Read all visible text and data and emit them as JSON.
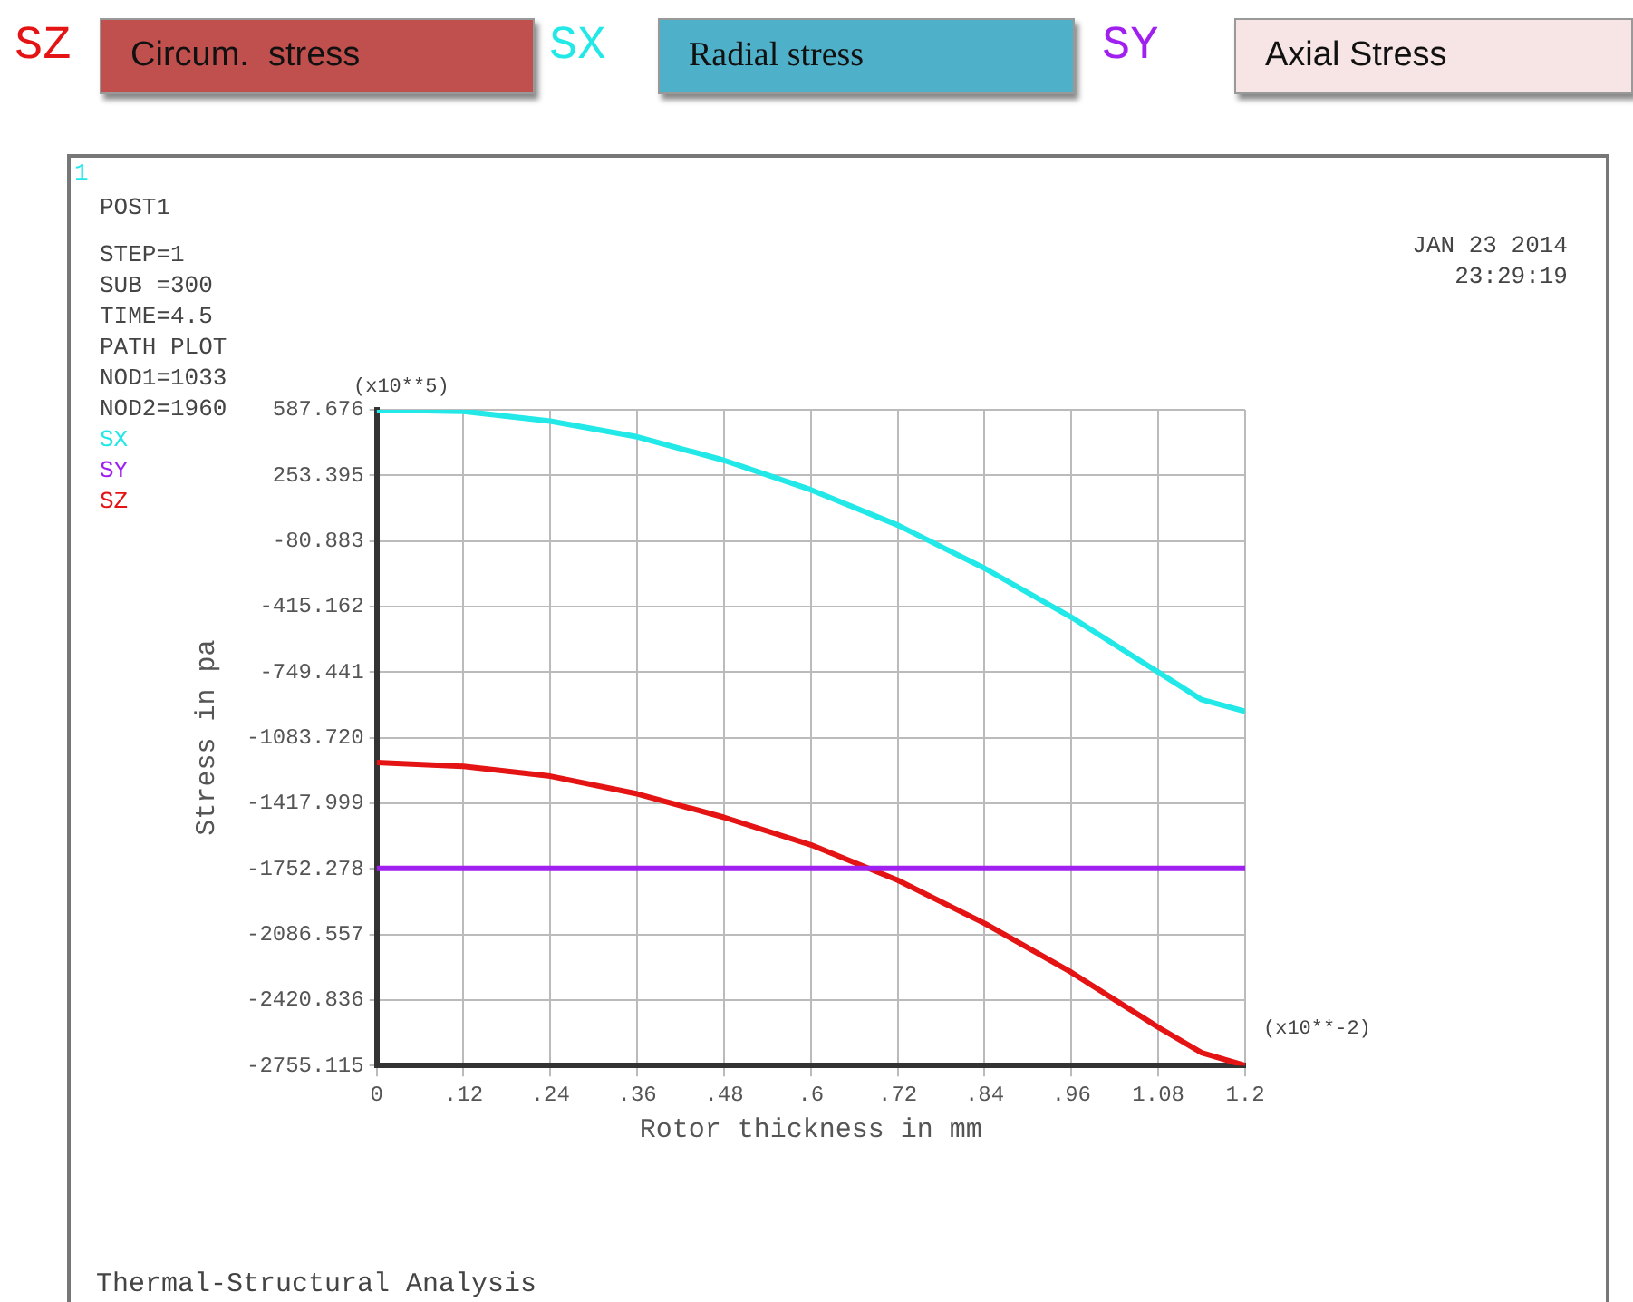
{
  "chart_data": {
    "type": "line",
    "xlabel": "Rotor thickness in mm",
    "ylabel": "Stress in pa",
    "x": [
      0,
      0.12,
      0.24,
      0.36,
      0.48,
      0.6,
      0.72,
      0.84,
      0.96,
      1.08,
      1.14,
      1.2
    ],
    "series": [
      {
        "name": "SX",
        "color": "#22e8e8",
        "values": [
          587.676,
          580,
          530,
          450,
          330,
          180,
          0,
          -220,
          -470,
          -750,
          -890,
          -950
        ]
      },
      {
        "name": "SY",
        "color": "#a020f0",
        "values": [
          -1750,
          -1750,
          -1750,
          -1750,
          -1750,
          -1750,
          -1750,
          -1750,
          -1750,
          -1750,
          -1750,
          -1750
        ]
      },
      {
        "name": "SZ",
        "color": "#e41414",
        "values": [
          -1210,
          -1230,
          -1280,
          -1370,
          -1490,
          -1630,
          -1810,
          -2030,
          -2280,
          -2560,
          -2690,
          -2755.115
        ]
      }
    ],
    "xlim": [
      0,
      1.2
    ],
    "xticks": [
      0,
      {
        "value": 0.12,
        "label": ".12"
      },
      {
        "value": 0.24,
        "label": ".24"
      },
      {
        "value": 0.36,
        "label": ".36"
      },
      {
        "value": 0.48,
        "label": ".48"
      },
      {
        "value": 0.6,
        "label": ".6"
      },
      {
        "value": 0.72,
        "label": ".72"
      },
      {
        "value": 0.84,
        "label": ".84"
      },
      {
        "value": 0.96,
        "label": ".96"
      },
      1.08,
      1.2
    ],
    "ylim": [
      -2755.115,
      587.676
    ],
    "yticks": [
      587.676,
      253.395,
      -80.883,
      -415.162,
      -749.441,
      {
        "value": -1083.72,
        "label": "-1083.720"
      },
      -1417.999,
      -1752.278,
      -2086.557,
      -2420.836,
      -2755.115
    ],
    "grid": true,
    "legend": "left",
    "marker": "none",
    "line_style": "solid",
    "annotations": [
      "Circum.  stress",
      "Radial stress",
      "Axial Stress",
      "1",
      "POST1",
      "STEP=1",
      "SUB =300",
      "TIME=4.5",
      "PATH PLOT",
      "NOD1=1033",
      "NOD2=1960",
      "JAN 23 2014",
      "23:29:19",
      "(x10**5)",
      "(x10**-2)",
      "Thermal-Structural Analysis"
    ]
  }
}
